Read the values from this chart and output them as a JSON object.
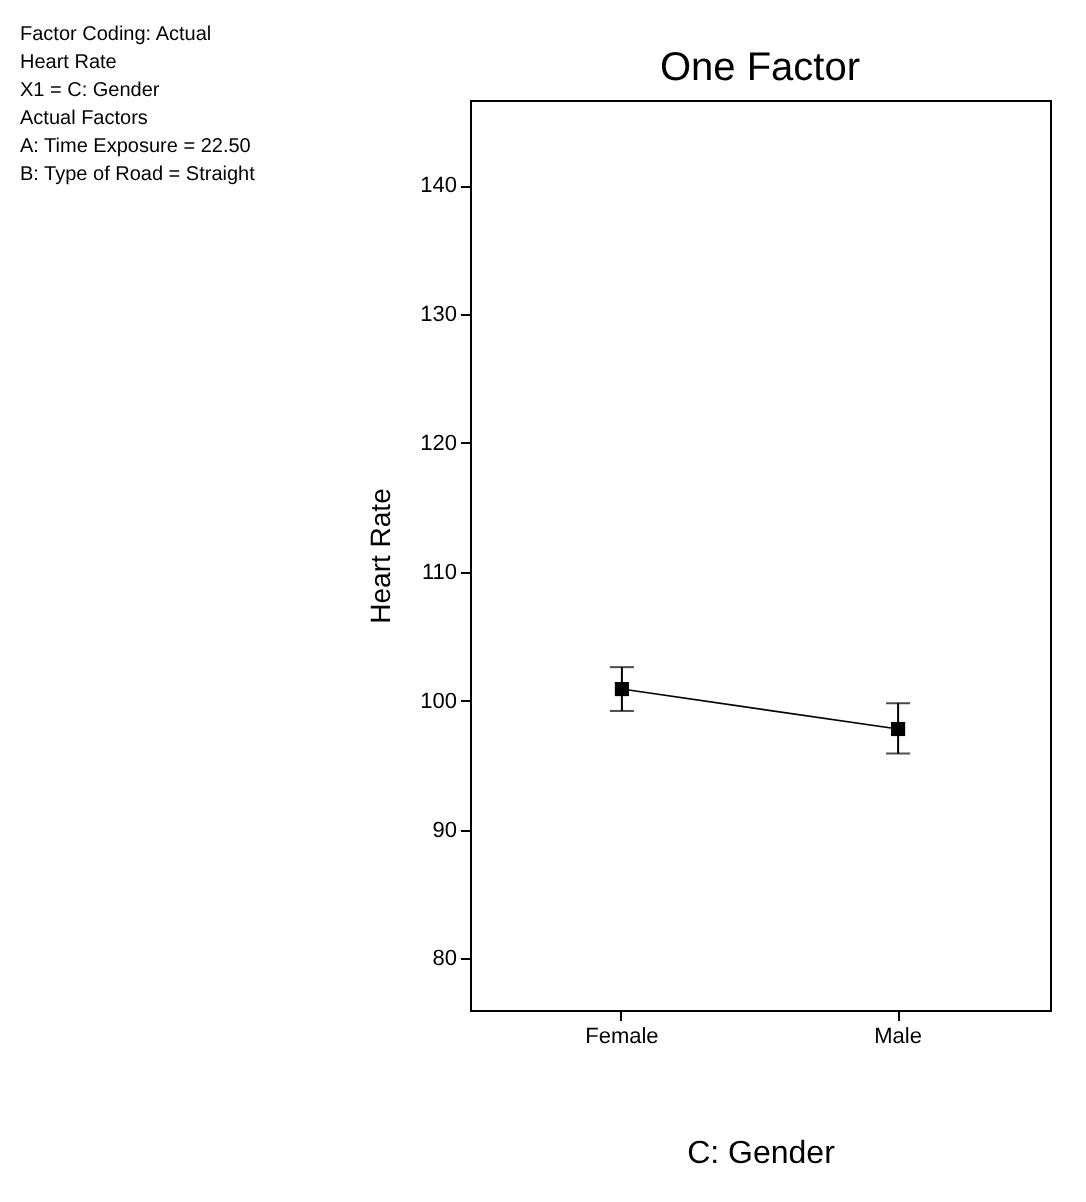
{
  "chart_data": {
    "type": "line",
    "title": "One Factor",
    "xlabel": "C: Gender",
    "ylabel": "Heart Rate",
    "categories": [
      "Female",
      "Male"
    ],
    "series": [
      {
        "color": "#000000",
        "values": [
          100.9,
          97.8
        ],
        "errors": [
          [
            99.2,
            102.6
          ],
          [
            95.9,
            99.8
          ]
        ]
      }
    ],
    "ylim": [
      76,
      146.6
    ],
    "yticks": [
      80,
      90,
      100,
      110,
      120,
      130,
      140
    ],
    "marker": "square",
    "line_style": "solid",
    "annotations": [
      "Factor Coding: Actual",
      "Heart Rate",
      "X1 = C: Gender",
      "Actual Factors",
      "A: Time Exposure  = 22.50",
      "B: Type of Road  = Straight"
    ]
  }
}
